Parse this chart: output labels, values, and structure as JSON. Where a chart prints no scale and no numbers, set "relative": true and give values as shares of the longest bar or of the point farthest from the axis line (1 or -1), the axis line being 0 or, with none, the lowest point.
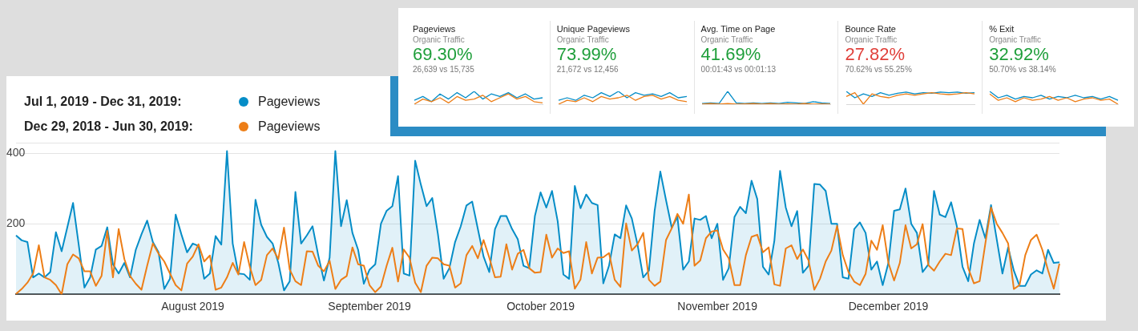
{
  "chart_data": [
    {
      "type": "other",
      "categories": [
        "Pageviews",
        "Unique Pageviews",
        "Avg. Time on Page",
        "Bounce Rate",
        "% Exit"
      ],
      "annotations": [
        "Organic Traffic",
        "69.30%",
        "26,639 vs 15,735",
        "Organic Traffic",
        "73.99%",
        "21,672 vs 12,456",
        "Organic Traffic",
        "41.69%",
        "00:01:43 vs 00:01:13",
        "Organic Traffic",
        "27.82%",
        "70.62% vs 55.25%",
        "Organic Traffic",
        "32.92%",
        "50.70% vs 38.14%"
      ],
      "colors": [
        "#1e9e3a",
        "#1e9e3a",
        "#1e9e3a",
        "#e0403a",
        "#1e9e3a"
      ]
    },
    {
      "type": "line",
      "relative": true,
      "categories": [
        null,
        null,
        null,
        null,
        null,
        null,
        null,
        null,
        null,
        null,
        null,
        null,
        null,
        null,
        null,
        null
      ],
      "series": [
        {
          "color": "#058dc7",
          "values": [
            0.3,
            0.6,
            0.2,
            0.8,
            0.4,
            0.9,
            0.5,
            1,
            0.4,
            0.8,
            0.6,
            0.9,
            0.5,
            0.8,
            0.4,
            0.5
          ]
        },
        {
          "color": "#ed7e17",
          "values": [
            0,
            0.4,
            0.2,
            0.5,
            0.1,
            0.6,
            0.3,
            0.4,
            0.7,
            0.2,
            0.5,
            0.8,
            0.4,
            0.6,
            0.2,
            0.1
          ]
        }
      ]
    },
    {
      "type": "line",
      "relative": true,
      "categories": [
        null,
        null,
        null,
        null,
        null,
        null,
        null,
        null,
        null,
        null,
        null,
        null,
        null,
        null,
        null,
        null
      ],
      "series": [
        {
          "color": "#058dc7",
          "values": [
            0.3,
            0.5,
            0.3,
            0.7,
            0.5,
            0.9,
            0.6,
            1,
            0.5,
            0.9,
            0.7,
            0.8,
            0.6,
            0.9,
            0.5,
            0.6
          ]
        },
        {
          "color": "#ed7e17",
          "values": [
            0,
            0.3,
            0.2,
            0.5,
            0.2,
            0.6,
            0.4,
            0.5,
            0.7,
            0.3,
            0.6,
            0.7,
            0.4,
            0.6,
            0.3,
            0.2
          ]
        }
      ]
    },
    {
      "type": "line",
      "relative": true,
      "categories": [
        null,
        null,
        null,
        null,
        null,
        null,
        null,
        null,
        null,
        null,
        null,
        null,
        null,
        null,
        null,
        null
      ],
      "series": [
        {
          "color": "#058dc7",
          "values": [
            0.05,
            0.1,
            0.05,
            1,
            0.1,
            0.05,
            0.1,
            0.05,
            0.1,
            0.05,
            0.15,
            0.1,
            0.05,
            0.2,
            0.1,
            0.05
          ]
        },
        {
          "color": "#ed7e17",
          "values": [
            0,
            0.05,
            0,
            0.05,
            0,
            0.02,
            0.05,
            0,
            0.05,
            0,
            0.02,
            0,
            0.05,
            0,
            0.02,
            0
          ]
        }
      ]
    },
    {
      "type": "line",
      "relative": true,
      "categories": [
        null,
        null,
        null,
        null,
        null,
        null,
        null,
        null,
        null,
        null,
        null,
        null,
        null,
        null,
        null,
        null
      ],
      "series": [
        {
          "color": "#058dc7",
          "values": [
            1,
            0.5,
            0.8,
            0.6,
            0.9,
            0.7,
            0.85,
            0.95,
            0.8,
            0.9,
            0.85,
            0.95,
            0.9,
            0.95,
            0.85,
            0.9
          ]
        },
        {
          "color": "#ed7e17",
          "values": [
            0.6,
            0.9,
            0,
            0.8,
            0.6,
            0.5,
            0.7,
            0.8,
            0.7,
            0.8,
            0.9,
            0.8,
            0.75,
            0.8,
            0.9,
            0.8
          ]
        }
      ]
    },
    {
      "type": "line",
      "relative": true,
      "categories": [
        null,
        null,
        null,
        null,
        null,
        null,
        null,
        null,
        null,
        null,
        null,
        null,
        null,
        null,
        null,
        null
      ],
      "series": [
        {
          "color": "#058dc7",
          "values": [
            1,
            0.5,
            0.7,
            0.4,
            0.6,
            0.5,
            0.7,
            0.4,
            0.6,
            0.5,
            0.7,
            0.5,
            0.6,
            0.4,
            0.6,
            0.3
          ]
        },
        {
          "color": "#ed7e17",
          "values": [
            0.8,
            0.3,
            0.5,
            0.2,
            0.5,
            0.3,
            0.4,
            0.6,
            0.3,
            0.5,
            0.2,
            0.4,
            0.5,
            0.3,
            0.4,
            0
          ]
        }
      ]
    },
    {
      "type": "line",
      "categories": [
        null,
        null,
        null,
        null,
        null,
        null,
        null,
        null,
        null,
        null,
        null,
        null,
        null,
        null,
        null,
        null,
        null,
        null,
        null,
        null,
        null,
        null,
        null,
        null,
        null,
        null,
        null,
        null,
        null,
        null,
        null,
        "August 2019",
        null,
        null,
        null,
        null,
        null,
        null,
        null,
        null,
        null,
        null,
        null,
        null,
        null,
        null,
        null,
        null,
        null,
        null,
        null,
        null,
        null,
        null,
        null,
        null,
        null,
        null,
        null,
        null,
        null,
        null,
        "September 2019",
        null,
        null,
        null,
        null,
        null,
        null,
        null,
        null,
        null,
        null,
        null,
        null,
        null,
        null,
        null,
        null,
        null,
        null,
        null,
        null,
        null,
        null,
        null,
        null,
        null,
        null,
        null,
        null,
        null,
        "October 2019",
        null,
        null,
        null,
        null,
        null,
        null,
        null,
        null,
        null,
        null,
        null,
        null,
        null,
        null,
        null,
        null,
        null,
        null,
        null,
        null,
        null,
        null,
        null,
        null,
        null,
        null,
        null,
        null,
        null,
        null,
        "November 2019",
        null,
        null,
        null,
        null,
        null,
        null,
        null,
        null,
        null,
        null,
        null,
        null,
        null,
        null,
        null,
        null,
        null,
        null,
        null,
        null,
        null,
        null,
        null,
        null,
        null,
        null,
        null,
        null,
        null,
        "December 2019",
        null,
        null,
        null,
        null,
        null,
        null,
        null,
        null,
        null,
        null,
        null,
        null,
        null,
        null,
        null,
        null,
        null,
        null,
        null,
        null,
        null,
        null,
        null,
        null,
        null,
        null,
        null,
        null,
        null,
        null
      ],
      "annotations": [
        "Jul 1, 2019 - Dec 31, 2019:",
        "Dec 29, 2018 - Jun 30, 2019:"
      ],
      "series": [
        {
          "name": "Pageviews",
          "type": "area",
          "color": "#058dc7",
          "values": [
            167,
            153,
            148,
            48,
            59,
            48,
            63,
            176,
            122,
            190,
            259,
            140,
            19,
            48,
            127,
            137,
            190,
            85,
            59,
            89,
            48,
            126,
            170,
            209,
            148,
            119,
            15,
            44,
            226,
            170,
            119,
            144,
            137,
            44,
            59,
            165,
            141,
            406,
            144,
            59,
            57,
            41,
            268,
            197,
            163,
            144,
            89,
            11,
            37,
            290,
            144,
            167,
            193,
            111,
            39,
            104,
            406,
            193,
            267,
            174,
            126,
            30,
            70,
            85,
            200,
            237,
            250,
            335,
            59,
            53,
            379,
            311,
            250,
            273,
            170,
            44,
            74,
            148,
            193,
            252,
            263,
            185,
            107,
            63,
            185,
            222,
            222,
            185,
            156,
            81,
            74,
            222,
            289,
            246,
            293,
            207,
            56,
            44,
            307,
            244,
            283,
            259,
            253,
            31,
            81,
            170,
            159,
            252,
            215,
            141,
            48,
            67,
            237,
            348,
            267,
            189,
            219,
            70,
            93,
            215,
            211,
            222,
            159,
            200,
            41,
            74,
            219,
            248,
            230,
            322,
            270,
            78,
            56,
            152,
            350,
            246,
            193,
            236,
            61,
            81,
            313,
            311,
            293,
            200,
            200,
            48,
            44,
            185,
            204,
            174,
            70,
            93,
            26,
            89,
            237,
            241,
            300,
            200,
            174,
            63,
            85,
            293,
            226,
            219,
            261,
            193,
            78,
            37,
            144,
            211,
            159,
            253,
            156,
            59,
            133,
            67,
            24,
            24,
            56,
            68,
            59,
            126,
            89,
            91
          ]
        },
        {
          "name": "Pageviews",
          "type": "line",
          "color": "#ed7e17",
          "values": [
            1,
            15,
            33,
            59,
            139,
            48,
            41,
            26,
            0,
            85,
            113,
            102,
            65,
            65,
            24,
            52,
            180,
            48,
            185,
            100,
            52,
            30,
            13,
            81,
            144,
            115,
            93,
            59,
            26,
            11,
            87,
            107,
            142,
            93,
            110,
            13,
            19,
            48,
            89,
            56,
            148,
            78,
            26,
            41,
            111,
            130,
            100,
            189,
            70,
            37,
            26,
            122,
            121,
            81,
            65,
            95,
            15,
            41,
            52,
            133,
            85,
            81,
            26,
            6,
            22,
            81,
            132,
            36,
            127,
            104,
            33,
            6,
            81,
            104,
            102,
            85,
            81,
            19,
            31,
            111,
            137,
            102,
            154,
            104,
            48,
            50,
            142,
            70,
            115,
            126,
            74,
            61,
            63,
            169,
            104,
            130,
            117,
            122,
            16,
            42,
            148,
            59,
            104,
            105,
            117,
            41,
            21,
            201,
            124,
            142,
            174,
            41,
            24,
            36,
            154,
            187,
            228,
            200,
            283,
            81,
            96,
            159,
            178,
            181,
            127,
            102,
            26,
            26,
            111,
            163,
            169,
            119,
            133,
            28,
            24,
            130,
            139,
            100,
            127,
            96,
            13,
            44,
            93,
            124,
            194,
            111,
            63,
            36,
            26,
            58,
            152,
            126,
            196,
            89,
            39,
            89,
            196,
            130,
            142,
            199,
            83,
            67,
            93,
            115,
            111,
            187,
            185,
            74,
            31,
            37,
            144,
            246,
            200,
            174,
            144,
            15,
            26,
            111,
            154,
            169,
            126,
            68,
            16,
            87
          ]
        }
      ],
      "ylim": [
        0,
        430
      ],
      "yticks": [
        200,
        400,
        {
          "value": 430,
          "label": null
        }
      ],
      "grid": "y",
      "legend": "top left"
    }
  ]
}
